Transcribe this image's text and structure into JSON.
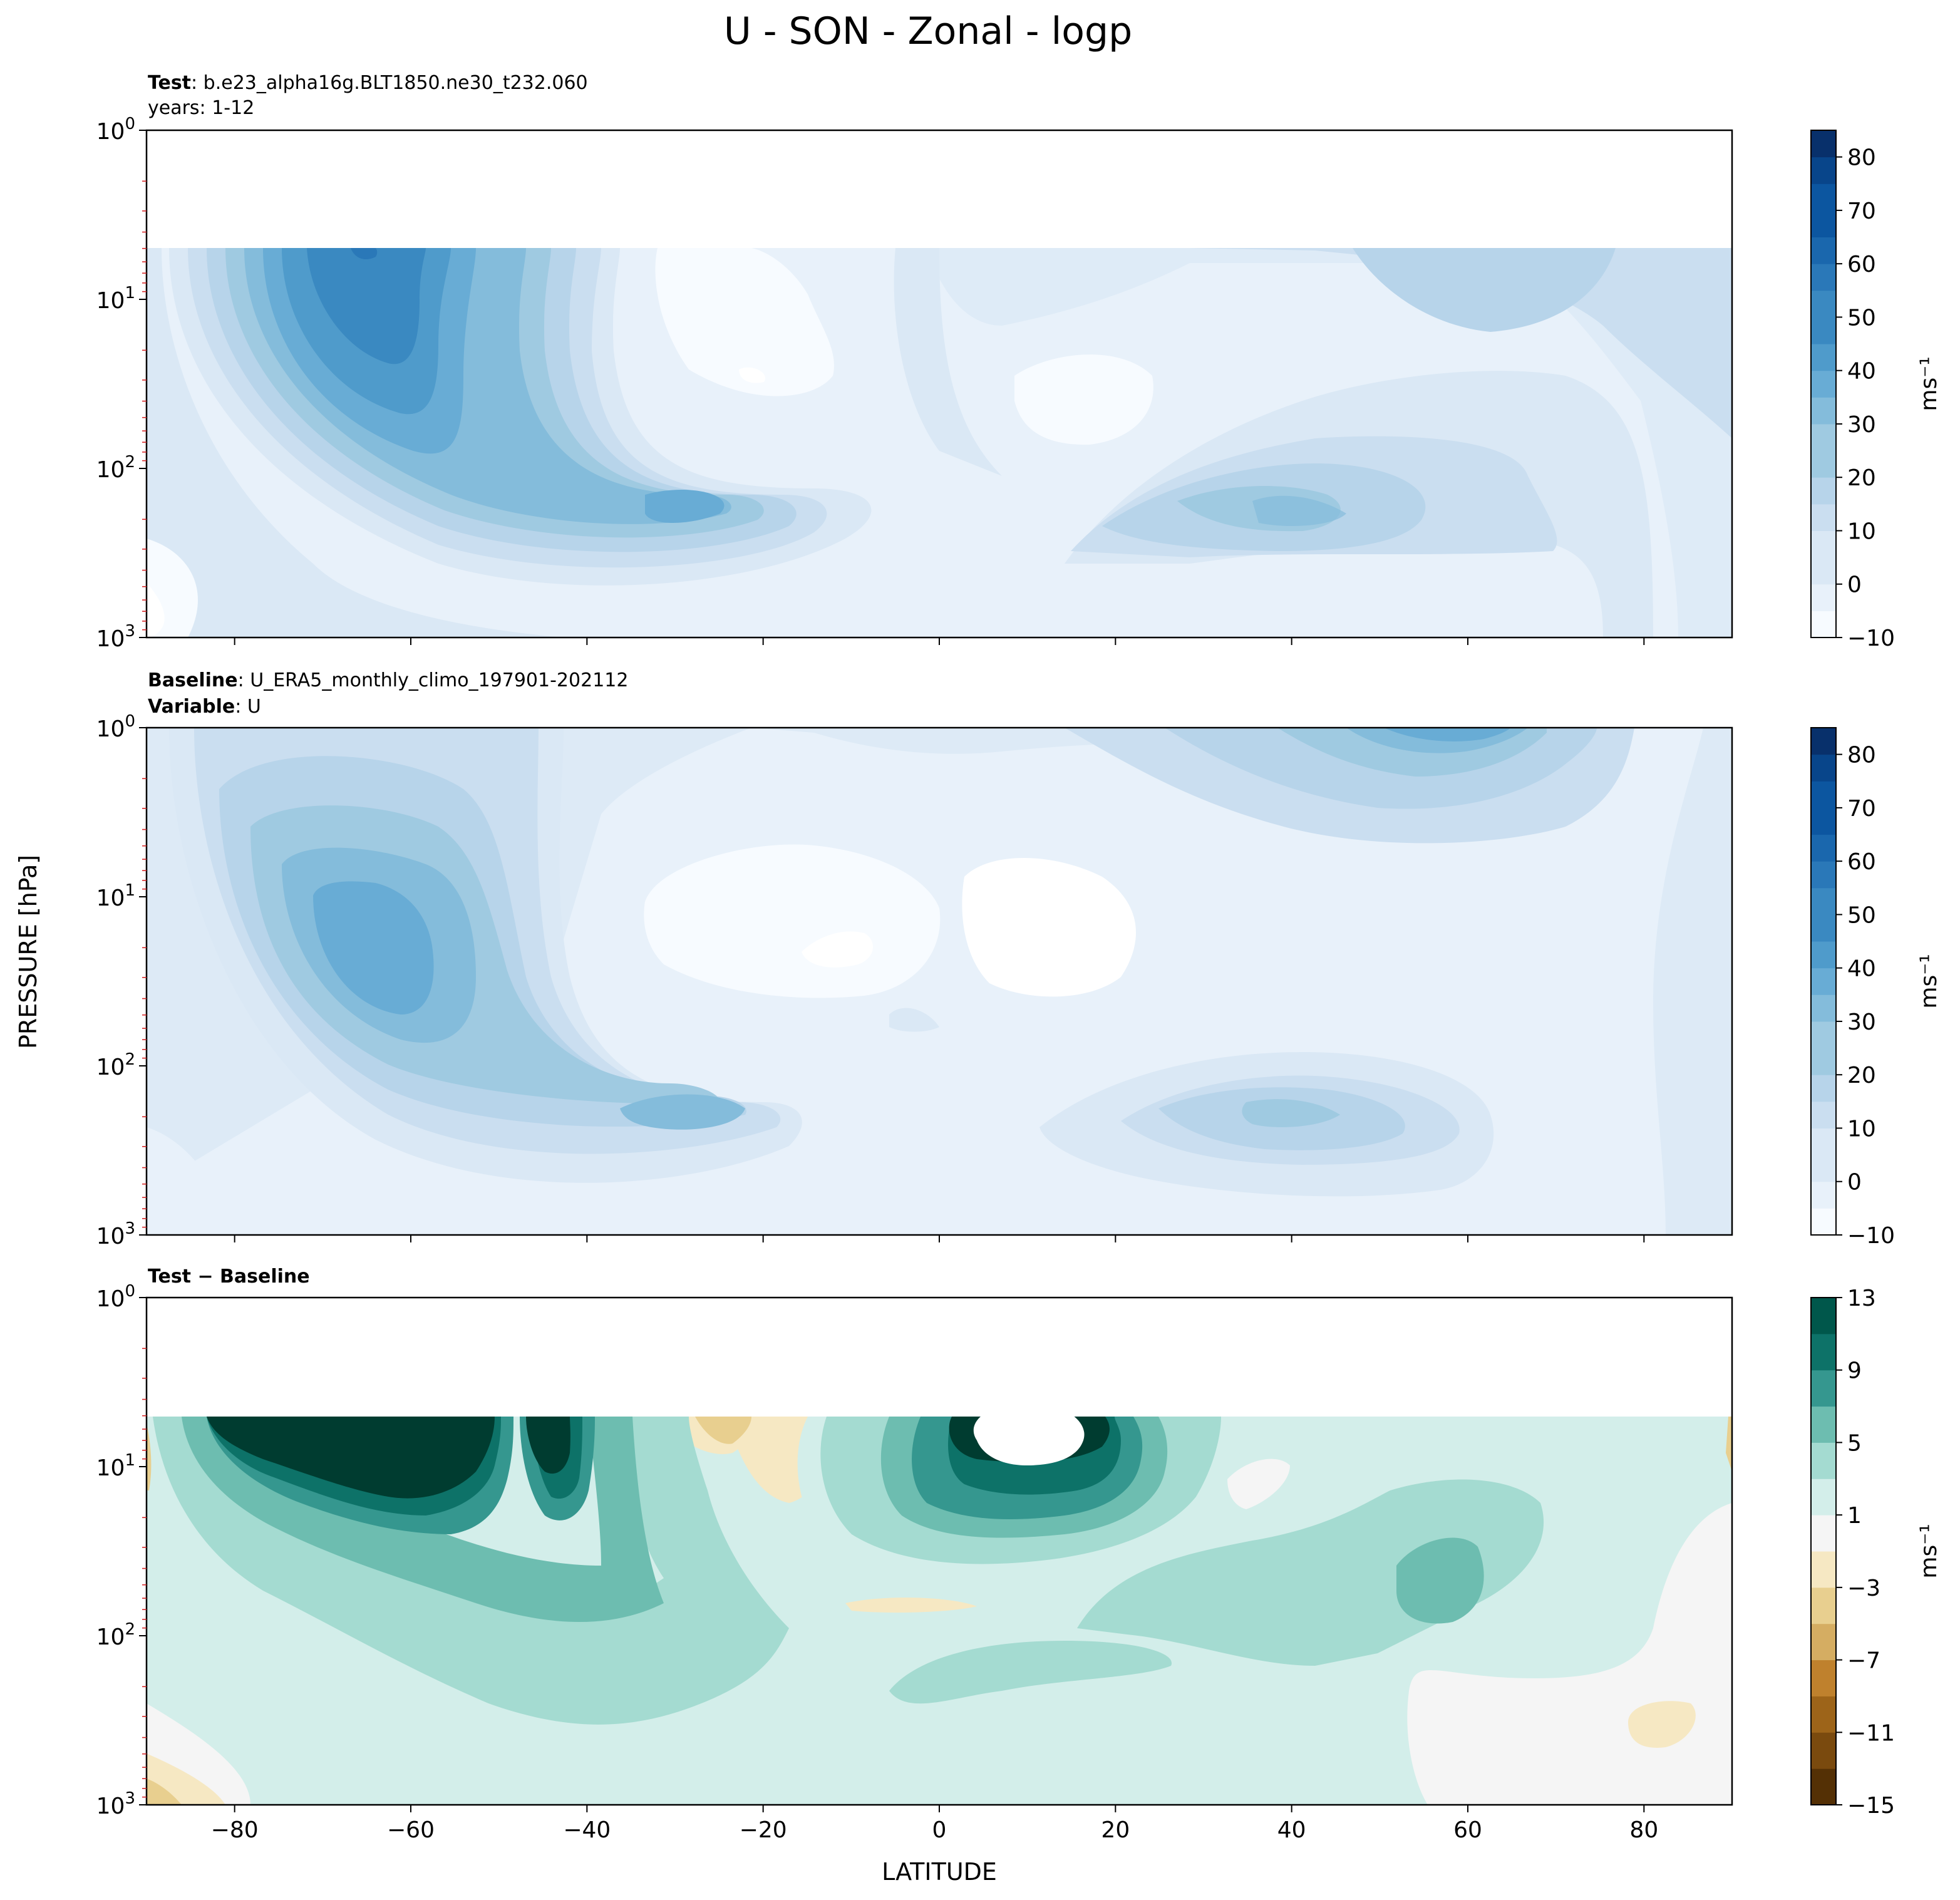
{
  "figure": {
    "title": "U - SON - Zonal - logp",
    "ylabel": "PRESSURE [hPa]",
    "xlabel": "LATITUDE"
  },
  "panels": [
    {
      "id": "test",
      "line1_bold": "Test",
      "line1_text": ": b.e23_alpha16g.BLT1850.ne30_t232.060",
      "line2_bold": "",
      "line2_text": "years: 1-12"
    },
    {
      "id": "baseline",
      "line1_bold": "Baseline",
      "line1_text": ": U_ERA5_monthly_climo_197901-202112",
      "line2_bold": "Variable",
      "line2_text": ": U"
    },
    {
      "id": "diff",
      "line1_bold": "Test − Baseline",
      "line1_text": "",
      "line2_bold": "",
      "line2_text": ""
    }
  ],
  "colorbar_unit": "ms⁻¹",
  "colors": {
    "blues": [
      "#f7fbff",
      "#e8f1fa",
      "#dae8f5",
      "#cadef0",
      "#b7d4ea",
      "#9fcae1",
      "#84bcdb",
      "#68acd5",
      "#4f9bcb",
      "#3a89c1",
      "#2a78b8",
      "#1a67ad",
      "#0c56a0",
      "#08458a",
      "#08306b"
    ],
    "brbg": [
      "#543005",
      "#7a4a0e",
      "#9d6419",
      "#bf812d",
      "#d5ad62",
      "#e8cf8f",
      "#f6e8c3",
      "#f5f5f5",
      "#d3eeea",
      "#a4dbd1",
      "#6dbdb0",
      "#35978f",
      "#0d7268",
      "#00574b",
      "#003c30"
    ]
  },
  "chart_data": [
    {
      "type": "contour",
      "panel": "test",
      "variable": "U",
      "x": [
        -90,
        90
      ],
      "xticks": [
        -80,
        -60,
        -40,
        -20,
        0,
        20,
        40,
        60,
        80
      ],
      "ylim": [
        1000,
        1
      ],
      "yscale": "log",
      "yticks": [
        "10^3",
        "10^2",
        "10^1",
        "10^0"
      ],
      "data_top_hPa": 5,
      "levels": [
        -10,
        -5,
        0,
        5,
        10,
        15,
        20,
        25,
        30,
        35,
        40,
        45,
        50,
        55,
        60,
        65,
        70,
        75,
        80,
        85
      ],
      "colorbar_ticks": [
        -10,
        0,
        10,
        20,
        30,
        40,
        50,
        60,
        70,
        80
      ],
      "features": [
        {
          "desc": "southern polar night jet",
          "lat": -63,
          "p": 10,
          "value": 60
        },
        {
          "desc": "southern subtropical jet",
          "lat": -30,
          "p": 200,
          "value": 40
        },
        {
          "desc": "northern subtropical jet",
          "lat": 42,
          "p": 200,
          "value": 25
        },
        {
          "desc": "northern stratospheric westerlies",
          "lat": 60,
          "p": 8,
          "value": 20
        },
        {
          "desc": "easterly minimum",
          "lat": -22,
          "p": 30,
          "value": -5
        },
        {
          "desc": "equatorial minimum",
          "lat": 13,
          "p": 40,
          "value": -2
        }
      ]
    },
    {
      "type": "contour",
      "panel": "baseline",
      "variable": "U",
      "x": [
        -90,
        90
      ],
      "xticks": [
        -80,
        -60,
        -40,
        -20,
        0,
        20,
        40,
        60,
        80
      ],
      "ylim": [
        1000,
        1
      ],
      "yscale": "log",
      "yticks": [
        "10^3",
        "10^2",
        "10^1",
        "10^0"
      ],
      "levels": [
        -10,
        -5,
        0,
        5,
        10,
        15,
        20,
        25,
        30,
        35,
        40,
        45,
        50,
        55,
        60,
        65,
        70,
        75,
        80,
        85
      ],
      "colorbar_ticks": [
        -10,
        0,
        10,
        20,
        30,
        40,
        50,
        60,
        70,
        80
      ],
      "features": [
        {
          "desc": "southern polar night jet",
          "lat": -62,
          "p": 25,
          "value": 40
        },
        {
          "desc": "southern subtropical jet",
          "lat": -30,
          "p": 200,
          "value": 35
        },
        {
          "desc": "northern subtropical jet",
          "lat": 42,
          "p": 200,
          "value": 25
        },
        {
          "desc": "northern upper stratospheric jet",
          "lat": 60,
          "p": 1.2,
          "value": 40
        },
        {
          "desc": "easterly region",
          "lat": 10,
          "p": 20,
          "value": -5
        },
        {
          "desc": "easterly region",
          "lat": -10,
          "p": 20,
          "value": -3
        }
      ]
    },
    {
      "type": "contour",
      "panel": "diff",
      "variable": "U difference",
      "x": [
        -90,
        90
      ],
      "xticks": [
        -80,
        -60,
        -40,
        -20,
        0,
        20,
        40,
        60,
        80
      ],
      "ylim": [
        1000,
        1
      ],
      "yscale": "log",
      "yticks": [
        "10^3",
        "10^2",
        "10^1",
        "10^0"
      ],
      "data_top_hPa": 5,
      "levels": [
        -15,
        -13,
        -11,
        -9,
        -7,
        -5,
        -3,
        -1,
        1,
        3,
        5,
        7,
        9,
        11,
        13
      ],
      "colorbar_ticks": [
        -15,
        -11,
        -7,
        -3,
        1,
        5,
        9,
        13
      ],
      "features": [
        {
          "desc": "southern high-latitude positive bias",
          "lat": -65,
          "p": 12,
          "value": 13
        },
        {
          "desc": "equatorial stratosphere positive bias",
          "lat": 10,
          "p": 10,
          "value": 14
        },
        {
          "desc": "northern mid-latitude positive bias",
          "lat": 60,
          "p": 60,
          "value": 7
        },
        {
          "desc": "subtropical negative bias",
          "lat": -22,
          "p": 10,
          "value": -3
        },
        {
          "desc": "lower troposphere negative bias",
          "lat": 80,
          "p": 500,
          "value": -2
        },
        {
          "desc": "southern surface negative bias",
          "lat": -85,
          "p": 900,
          "value": -4
        }
      ]
    }
  ]
}
